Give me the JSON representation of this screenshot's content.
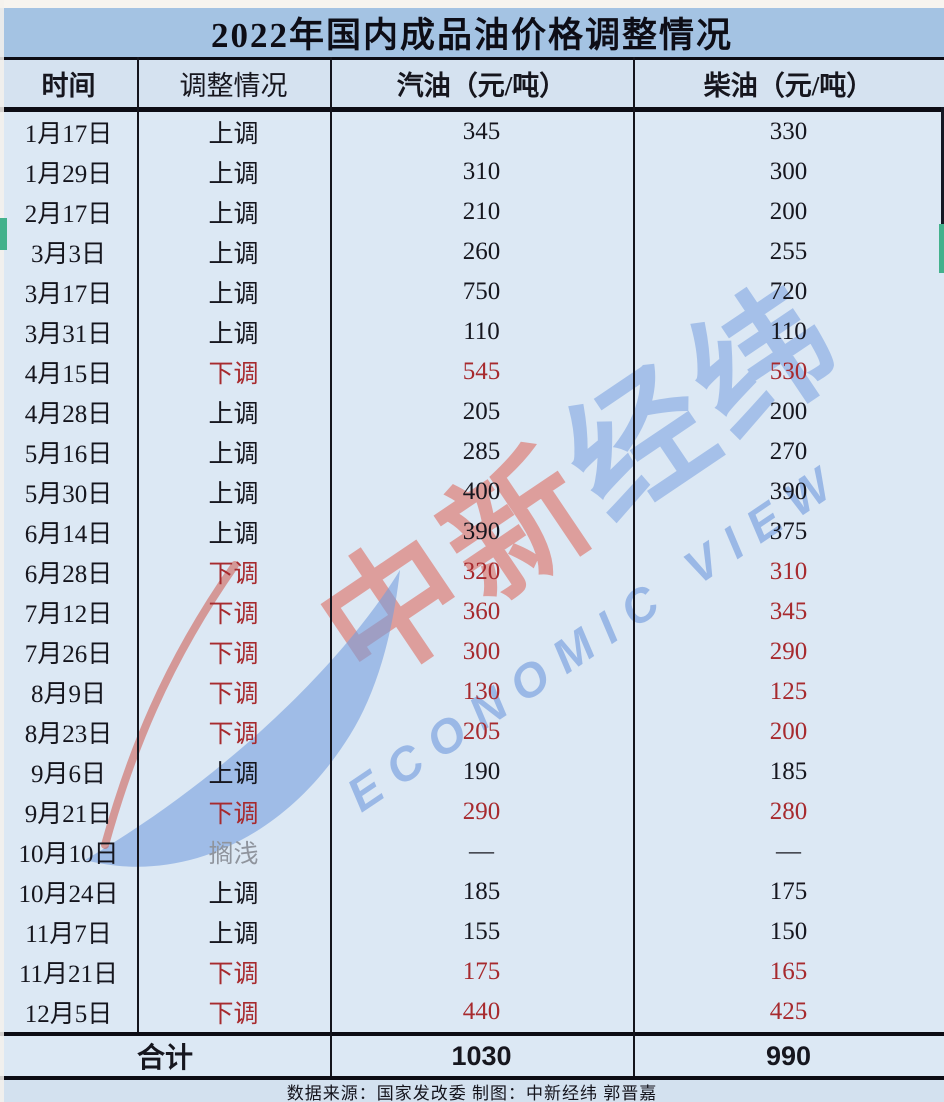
{
  "title": "2022年国内成品油价格调整情况",
  "table": {
    "columns": [
      "时间",
      "调整情况",
      "汽油（元/吨）",
      "柴油（元/吨）"
    ],
    "rows": [
      {
        "date": "1月17日",
        "status": "上调",
        "type": "up",
        "gasoline": "345",
        "diesel": "330"
      },
      {
        "date": "1月29日",
        "status": "上调",
        "type": "up",
        "gasoline": "310",
        "diesel": "300"
      },
      {
        "date": "2月17日",
        "status": "上调",
        "type": "up",
        "gasoline": "210",
        "diesel": "200"
      },
      {
        "date": "3月3日",
        "status": "上调",
        "type": "up",
        "gasoline": "260",
        "diesel": "255"
      },
      {
        "date": "3月17日",
        "status": "上调",
        "type": "up",
        "gasoline": "750",
        "diesel": "720"
      },
      {
        "date": "3月31日",
        "status": "上调",
        "type": "up",
        "gasoline": "110",
        "diesel": "110"
      },
      {
        "date": "4月15日",
        "status": "下调",
        "type": "down",
        "gasoline": "545",
        "diesel": "530"
      },
      {
        "date": "4月28日",
        "status": "上调",
        "type": "up",
        "gasoline": "205",
        "diesel": "200"
      },
      {
        "date": "5月16日",
        "status": "上调",
        "type": "up",
        "gasoline": "285",
        "diesel": "270"
      },
      {
        "date": "5月30日",
        "status": "上调",
        "type": "up",
        "gasoline": "400",
        "diesel": "390"
      },
      {
        "date": "6月14日",
        "status": "上调",
        "type": "up",
        "gasoline": "390",
        "diesel": "375"
      },
      {
        "date": "6月28日",
        "status": "下调",
        "type": "down",
        "gasoline": "320",
        "diesel": "310"
      },
      {
        "date": "7月12日",
        "status": "下调",
        "type": "down",
        "gasoline": "360",
        "diesel": "345"
      },
      {
        "date": "7月26日",
        "status": "下调",
        "type": "down",
        "gasoline": "300",
        "diesel": "290"
      },
      {
        "date": "8月9日",
        "status": "下调",
        "type": "down",
        "gasoline": "130",
        "diesel": "125"
      },
      {
        "date": "8月23日",
        "status": "下调",
        "type": "down",
        "gasoline": "205",
        "diesel": "200"
      },
      {
        "date": "9月6日",
        "status": "上调",
        "type": "up",
        "gasoline": "190",
        "diesel": "185"
      },
      {
        "date": "9月21日",
        "status": "下调",
        "type": "down",
        "gasoline": "290",
        "diesel": "280"
      },
      {
        "date": "10月10日",
        "status": "搁浅",
        "type": "hold",
        "gasoline": "—",
        "diesel": "—"
      },
      {
        "date": "10月24日",
        "status": "上调",
        "type": "up",
        "gasoline": "185",
        "diesel": "175"
      },
      {
        "date": "11月7日",
        "status": "上调",
        "type": "up",
        "gasoline": "155",
        "diesel": "150"
      },
      {
        "date": "11月21日",
        "status": "下调",
        "type": "down",
        "gasoline": "175",
        "diesel": "165"
      },
      {
        "date": "12月5日",
        "status": "下调",
        "type": "down",
        "gasoline": "440",
        "diesel": "425"
      }
    ],
    "total": {
      "label": "合计",
      "gasoline": "1030",
      "diesel": "990"
    }
  },
  "footer": "数据来源：国家发改委 制图：中新经纬 郭晋嘉",
  "watermark": {
    "cn_red": "中新",
    "cn_blue": "经纬",
    "en": "ECONOMIC VIEW"
  },
  "colors": {
    "status_up": "#16161e",
    "status_down": "#a72a2e",
    "status_hold": "#8f949d",
    "title_bg": "#a4c3e3",
    "body_bg": "#dce8f4",
    "edge_marker": "#43b18c"
  }
}
